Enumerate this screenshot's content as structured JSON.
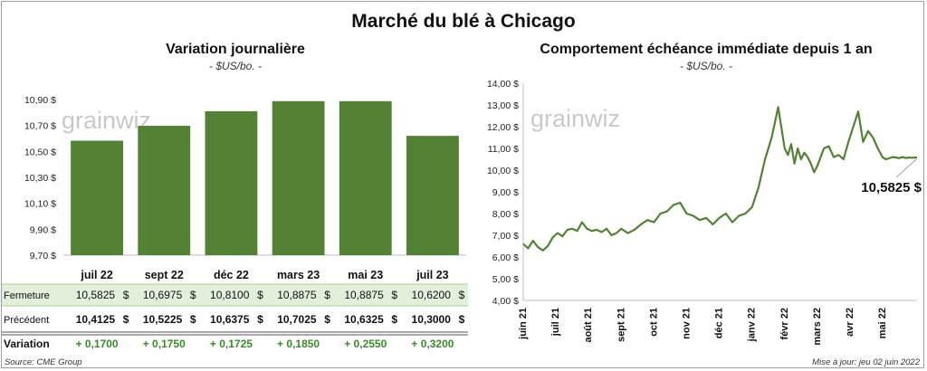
{
  "title": "Marché du blé à Chicago",
  "source": "Source: CME Group",
  "updated": "Mise à jour: jeu 02 juin 2022",
  "watermark": "grainwiz",
  "colors": {
    "bar": "#548235",
    "line": "#548235",
    "table_highlight": "#e2efda"
  },
  "table": {
    "rows": [
      {
        "label": "Fermeture",
        "values": [
          "10,5825",
          "10,6975",
          "10,8100",
          "10,8875",
          "10,8875",
          "10,6200"
        ],
        "unit": "$"
      },
      {
        "label": "Précédent",
        "values": [
          "10,4125",
          "10,5225",
          "10,6375",
          "10,7025",
          "10,6325",
          "10,3000"
        ],
        "unit": "$"
      },
      {
        "label": "Variation",
        "values": [
          "+ 0,1700",
          "+ 0,1750",
          "+ 0,1725",
          "+ 0,1850",
          "+ 0,2550",
          "+ 0,3200"
        ],
        "unit": ""
      }
    ]
  },
  "chart_data": [
    {
      "type": "bar",
      "title": "Variation journalière",
      "subtitle": "- $US/bo. -",
      "categories": [
        "juil 22",
        "sept 22",
        "déc 22",
        "mars 23",
        "mai 23",
        "juil 23"
      ],
      "values": [
        10.5825,
        10.6975,
        10.81,
        10.8875,
        10.8875,
        10.62
      ],
      "ylim": [
        9.7,
        10.9
      ],
      "yticks": [
        "9,70 $",
        "9,90 $",
        "10,10 $",
        "10,30 $",
        "10,50 $",
        "10,70 $",
        "10,90 $"
      ],
      "grid": false,
      "legend": "none"
    },
    {
      "type": "line",
      "title": "Comportement échéance immédiate depuis 1 an",
      "subtitle": "- $US/bo. -",
      "ylim": [
        4,
        14
      ],
      "yticks": [
        "4,00 $",
        "5,00 $",
        "6,00 $",
        "7,00 $",
        "8,00 $",
        "9,00 $",
        "10,00 $",
        "11,00 $",
        "12,00 $",
        "13,00 $",
        "14,00 $"
      ],
      "xticks": [
        "juin 21",
        "juil 21",
        "août 21",
        "sept 21",
        "oct 21",
        "nov 21",
        "déc 21",
        "janv 22",
        "févr 22",
        "mars 22",
        "avr 22",
        "mai 22"
      ],
      "xrange_months": [
        0,
        12.05
      ],
      "series": [
        {
          "x": [
            0,
            0.15,
            0.3,
            0.45,
            0.6,
            0.75,
            0.9,
            1.05,
            1.2,
            1.35,
            1.5,
            1.65,
            1.8,
            1.95,
            2.1,
            2.25,
            2.4,
            2.55,
            2.7,
            2.85,
            3.0,
            3.2,
            3.4,
            3.6,
            3.8,
            4.0,
            4.2,
            4.4,
            4.6,
            4.8,
            5.0,
            5.2,
            5.4,
            5.6,
            5.8,
            6.0,
            6.2,
            6.4,
            6.6,
            6.8,
            7.0,
            7.2,
            7.4,
            7.6,
            7.8,
            8.0,
            8.1,
            8.2,
            8.3,
            8.4,
            8.5,
            8.6,
            8.7,
            8.8,
            8.9,
            9.0,
            9.1,
            9.2,
            9.35,
            9.5,
            9.65,
            9.8,
            9.95,
            10.1,
            10.25,
            10.4,
            10.55,
            10.7,
            10.85,
            11.0,
            11.1,
            11.2,
            11.3,
            11.4,
            11.5,
            11.6,
            11.7,
            11.8,
            11.9,
            12.0,
            12.05
          ],
          "values": [
            6.6,
            6.4,
            6.75,
            6.45,
            6.3,
            6.5,
            6.9,
            7.1,
            6.95,
            7.25,
            7.3,
            7.2,
            7.6,
            7.3,
            7.2,
            7.25,
            7.15,
            7.3,
            7.0,
            7.1,
            7.3,
            7.1,
            7.25,
            7.5,
            7.7,
            7.6,
            8.0,
            8.1,
            8.4,
            8.5,
            8.0,
            7.9,
            7.7,
            7.8,
            7.5,
            7.8,
            8.0,
            7.6,
            7.9,
            8.0,
            8.3,
            9.2,
            10.5,
            11.5,
            12.9,
            11.0,
            10.7,
            11.2,
            10.3,
            11.0,
            10.5,
            10.8,
            10.6,
            10.3,
            9.9,
            10.2,
            10.6,
            11.0,
            11.1,
            10.6,
            10.7,
            10.5,
            11.3,
            12.0,
            12.7,
            11.3,
            11.8,
            11.5,
            11.0,
            10.5825,
            10.5,
            10.55,
            10.6,
            10.5825,
            10.55,
            10.6,
            10.56,
            10.58,
            10.57,
            10.58,
            10.5825
          ]
        }
      ],
      "last_label": "10,5825 $",
      "grid": false,
      "legend": "none"
    }
  ],
  "left_title": "Variation journalière",
  "left_unit": "- $US/bo. -",
  "right_title": "Comportement échéance immédiate depuis 1 an",
  "right_unit": "- $US/bo. -"
}
